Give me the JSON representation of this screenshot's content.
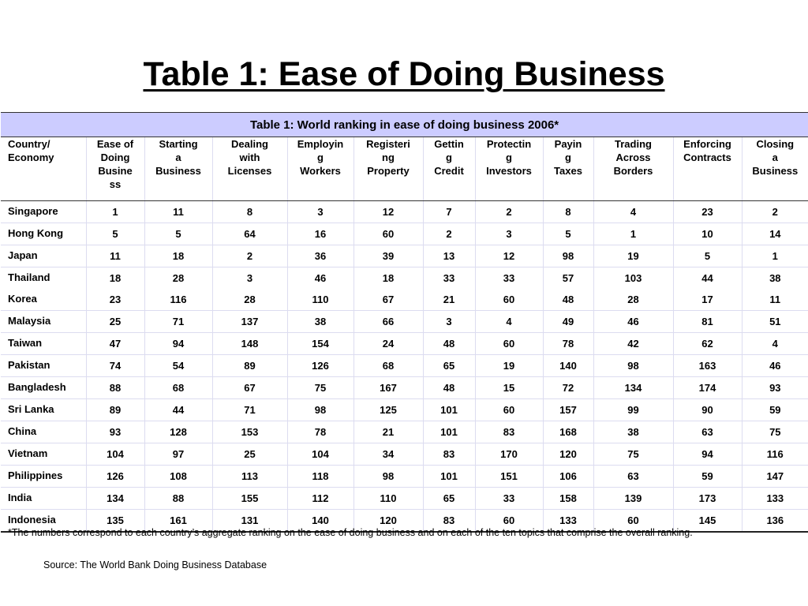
{
  "slide": {
    "title": "Table 1: Ease of Doing Business"
  },
  "table": {
    "caption": "Table 1: World ranking in ease of doing business 2006*",
    "headers": [
      "Country/\nEconomy",
      "Ease of\nDoing\nBusine\nss",
      "Starting\na\nBusiness",
      "Dealing\nwith\nLicenses",
      "Employin\ng\nWorkers",
      "Registeri\nng\nProperty",
      "Gettin\ng\nCredit",
      "Protectin\ng\nInvestors",
      "Payin\ng\nTaxes",
      "Trading\nAcross\nBorders",
      "Enforcing\nContracts",
      "Closing\na\nBusiness"
    ],
    "rows": [
      [
        "Singapore",
        "1",
        "11",
        "8",
        "3",
        "12",
        "7",
        "2",
        "8",
        "4",
        "23",
        "2"
      ],
      [
        "Hong Kong",
        "5",
        "5",
        "64",
        "16",
        "60",
        "2",
        "3",
        "5",
        "1",
        "10",
        "14"
      ],
      [
        "Japan",
        "11",
        "18",
        "2",
        "36",
        "39",
        "13",
        "12",
        "98",
        "19",
        "5",
        "1"
      ],
      [
        "Thailand",
        "18",
        "28",
        "3",
        "46",
        "18",
        "33",
        "33",
        "57",
        "103",
        "44",
        "38"
      ],
      [
        "Korea",
        "23",
        "116",
        "28",
        "110",
        "67",
        "21",
        "60",
        "48",
        "28",
        "17",
        "11"
      ],
      [
        "Malaysia",
        "25",
        "71",
        "137",
        "38",
        "66",
        "3",
        "4",
        "49",
        "46",
        "81",
        "51"
      ],
      [
        "Taiwan",
        "47",
        "94",
        "148",
        "154",
        "24",
        "48",
        "60",
        "78",
        "42",
        "62",
        "4"
      ],
      [
        "Pakistan",
        "74",
        "54",
        "89",
        "126",
        "68",
        "65",
        "19",
        "140",
        "98",
        "163",
        "46"
      ],
      [
        "Bangladesh",
        "88",
        "68",
        "67",
        "75",
        "167",
        "48",
        "15",
        "72",
        "134",
        "174",
        "93"
      ],
      [
        "Sri Lanka",
        "89",
        "44",
        "71",
        "98",
        "125",
        "101",
        "60",
        "157",
        "99",
        "90",
        "59"
      ],
      [
        "China",
        "93",
        "128",
        "153",
        "78",
        "21",
        "101",
        "83",
        "168",
        "38",
        "63",
        "75"
      ],
      [
        "Vietnam",
        "104",
        "97",
        "25",
        "104",
        "34",
        "83",
        "170",
        "120",
        "75",
        "94",
        "116"
      ],
      [
        "Philippines",
        "126",
        "108",
        "113",
        "118",
        "98",
        "101",
        "151",
        "106",
        "63",
        "59",
        "147"
      ],
      [
        "India",
        "134",
        "88",
        "155",
        "112",
        "110",
        "65",
        "33",
        "158",
        "139",
        "173",
        "133"
      ],
      [
        "Indonesia",
        "135",
        "161",
        "131",
        "140",
        "120",
        "83",
        "60",
        "133",
        "60",
        "145",
        "136"
      ]
    ]
  },
  "footnote": "*The numbers correspond to each country’s aggregate ranking on the ease of doing business and on each of the ten topics that comprise the overall ranking.",
  "source": "Source: The World Bank Doing Business Database"
}
